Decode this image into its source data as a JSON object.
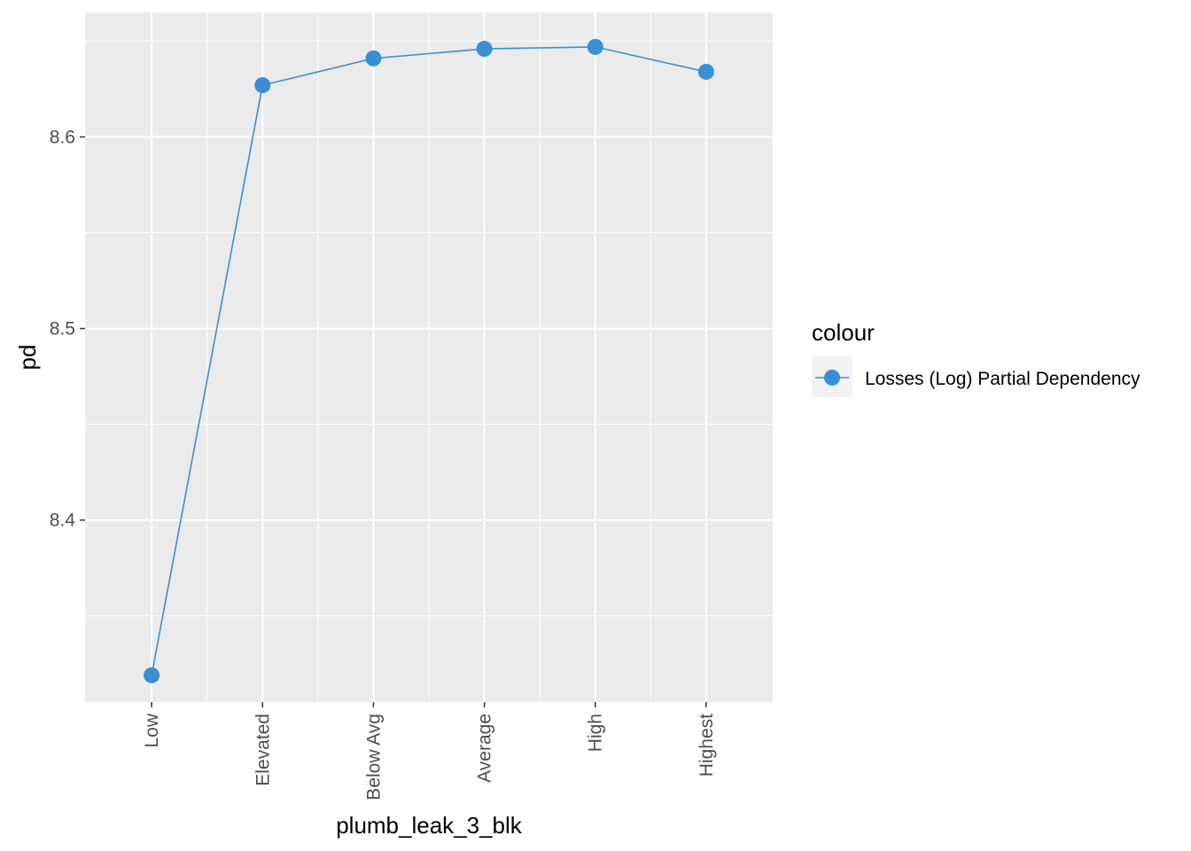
{
  "chart_data": {
    "type": "line",
    "categories": [
      "Low",
      "Elevated",
      "Below Avg",
      "Average",
      "High",
      "Highest"
    ],
    "series": [
      {
        "name": "Losses (Log) Partial Dependency",
        "values": [
          8.319,
          8.627,
          8.641,
          8.646,
          8.647,
          8.634
        ],
        "color": "#3a8fd4"
      }
    ],
    "xlabel": "plumb_leak_3_blk",
    "ylabel": "pd",
    "ylim": [
      8.305,
      8.665
    ],
    "yticks": [
      8.4,
      8.5,
      8.6
    ],
    "ytick_labels": [
      "8.4",
      "8.5",
      "8.6"
    ],
    "grid": true,
    "legend": {
      "title": "colour",
      "placement": "right"
    },
    "panel_background": "#ebebeb",
    "grid_color": "#ffffff"
  }
}
